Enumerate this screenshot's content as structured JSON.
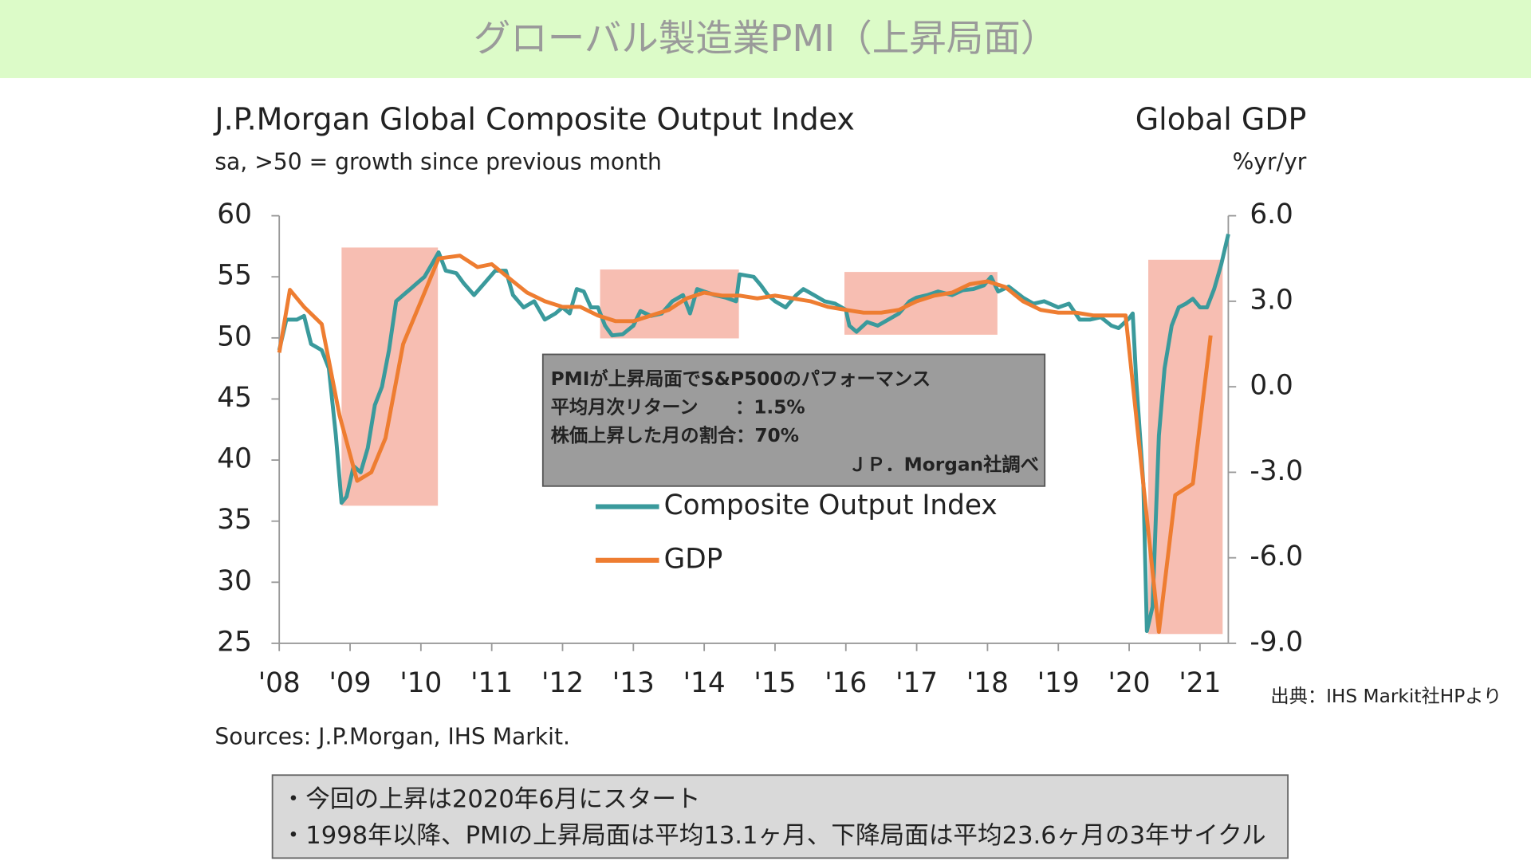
{
  "header": {
    "title": "グローバル製造業PMI（上昇局面）"
  },
  "chart_data": {
    "type": "line",
    "title": "J.P.Morgan Global Composite Output Index",
    "subtitle": "sa, >50 = growth since previous month",
    "y2_title": "Global GDP",
    "y2_subtitle": "%yr/yr",
    "source": "Sources: J.P.Morgan, IHS Markit.",
    "xlim": [
      2008,
      2021.4
    ],
    "xticks": [
      {
        "value": 2008,
        "label": "'08"
      },
      {
        "value": 2009,
        "label": "'09"
      },
      {
        "value": 2010,
        "label": "'10"
      },
      {
        "value": 2011,
        "label": "'11"
      },
      {
        "value": 2012,
        "label": "'12"
      },
      {
        "value": 2013,
        "label": "'13"
      },
      {
        "value": 2014,
        "label": "'14"
      },
      {
        "value": 2015,
        "label": "'15"
      },
      {
        "value": 2016,
        "label": "'16"
      },
      {
        "value": 2017,
        "label": "'17"
      },
      {
        "value": 2018,
        "label": "'18"
      },
      {
        "value": 2019,
        "label": "'19"
      },
      {
        "value": 2020,
        "label": "'20"
      },
      {
        "value": 2021,
        "label": "'21"
      }
    ],
    "ylim": [
      25,
      60
    ],
    "yticks": [
      25,
      30,
      35,
      40,
      45,
      50,
      55,
      60
    ],
    "y2lim": [
      -9,
      6
    ],
    "y2ticks": [
      {
        "value": -9,
        "label": "-9.0"
      },
      {
        "value": -6,
        "label": "-6.0"
      },
      {
        "value": -3,
        "label": "-3.0"
      },
      {
        "value": 0,
        "label": "0.0"
      },
      {
        "value": 3,
        "label": "3.0"
      },
      {
        "value": 6,
        "label": "6.0"
      }
    ],
    "grid": false,
    "series": [
      {
        "name": "Composite Output Index",
        "color": "#3a9a9c",
        "x": [
          2008.0,
          2008.1,
          2008.25,
          2008.35,
          2008.45,
          2008.6,
          2008.7,
          2008.8,
          2008.88,
          2008.95,
          2009.05,
          2009.15,
          2009.25,
          2009.35,
          2009.45,
          2009.55,
          2009.65,
          2009.75,
          2009.85,
          2009.95,
          2010.05,
          2010.15,
          2010.25,
          2010.35,
          2010.5,
          2010.6,
          2010.75,
          2010.9,
          2011.05,
          2011.2,
          2011.3,
          2011.45,
          2011.6,
          2011.75,
          2011.9,
          2012.0,
          2012.1,
          2012.2,
          2012.3,
          2012.4,
          2012.5,
          2012.6,
          2012.7,
          2012.85,
          2013.0,
          2013.1,
          2013.25,
          2013.4,
          2013.55,
          2013.7,
          2013.8,
          2013.9,
          2014.0,
          2014.15,
          2014.3,
          2014.45,
          2014.5,
          2014.7,
          2014.8,
          2014.9,
          2015.0,
          2015.15,
          2015.3,
          2015.4,
          2015.55,
          2015.7,
          2015.85,
          2016.0,
          2016.05,
          2016.15,
          2016.3,
          2016.45,
          2016.6,
          2016.75,
          2016.9,
          2017.0,
          2017.15,
          2017.3,
          2017.5,
          2017.65,
          2017.8,
          2017.95,
          2018.05,
          2018.15,
          2018.3,
          2018.5,
          2018.65,
          2018.8,
          2019.0,
          2019.15,
          2019.3,
          2019.45,
          2019.6,
          2019.75,
          2019.85,
          2020.0,
          2020.05,
          2020.1,
          2020.2,
          2020.25,
          2020.33,
          2020.42,
          2020.5,
          2020.6,
          2020.7,
          2020.8,
          2020.9,
          2021.0,
          2021.1,
          2021.2,
          2021.3,
          2021.4
        ],
        "values": [
          49,
          51.5,
          51.5,
          51.8,
          49.5,
          49,
          47.5,
          42,
          36.5,
          37,
          39.5,
          39,
          41,
          44.5,
          46,
          49,
          53,
          53.5,
          54,
          54.5,
          55,
          56,
          57,
          55.5,
          55.3,
          54.5,
          53.5,
          54.5,
          55.5,
          55.5,
          53.5,
          52.5,
          53,
          51.5,
          52,
          52.5,
          52,
          54,
          53.8,
          52.5,
          52.5,
          51,
          50.2,
          50.3,
          51,
          52.2,
          51.8,
          52,
          53,
          53.5,
          52,
          54,
          53.8,
          53.5,
          53.3,
          53,
          55.2,
          55,
          54.3,
          53.5,
          53,
          52.5,
          53.5,
          54,
          53.5,
          53,
          52.8,
          52.3,
          51,
          50.5,
          51.3,
          51,
          51.5,
          52,
          53,
          53.3,
          53.5,
          53.8,
          53.5,
          53.9,
          54,
          54.3,
          55,
          53.8,
          54.2,
          53.3,
          52.8,
          53,
          52.5,
          52.8,
          51.5,
          51.5,
          51.7,
          51,
          50.8,
          51.6,
          52,
          46.5,
          38,
          26,
          28,
          42,
          47.5,
          51,
          52.5,
          52.8,
          53.2,
          52.5,
          52.5,
          54,
          56,
          58.5
        ]
      },
      {
        "name": "GDP",
        "color": "#ee7d31",
        "axis": "y2",
        "x": [
          2008.0,
          2008.15,
          2008.35,
          2008.6,
          2008.85,
          2009.1,
          2009.3,
          2009.5,
          2009.75,
          2010.0,
          2010.25,
          2010.55,
          2010.8,
          2011.0,
          2011.3,
          2011.5,
          2011.75,
          2012.0,
          2012.25,
          2012.5,
          2012.75,
          2013.0,
          2013.25,
          2013.5,
          2013.75,
          2014.0,
          2014.25,
          2014.5,
          2014.75,
          2015.0,
          2015.25,
          2015.5,
          2015.75,
          2016.0,
          2016.25,
          2016.5,
          2016.75,
          2017.0,
          2017.25,
          2017.5,
          2017.75,
          2018.0,
          2018.25,
          2018.5,
          2018.75,
          2019.0,
          2019.25,
          2019.5,
          2019.95,
          2020.42,
          2020.65,
          2020.9,
          2021.15
        ],
        "values": [
          1.2,
          3.4,
          2.8,
          2.2,
          -1.0,
          -3.3,
          -3.0,
          -1.8,
          1.5,
          3.0,
          4.5,
          4.6,
          4.2,
          4.3,
          3.7,
          3.3,
          3.0,
          2.8,
          2.8,
          2.5,
          2.3,
          2.3,
          2.5,
          2.7,
          3.1,
          3.3,
          3.2,
          3.2,
          3.1,
          3.2,
          3.1,
          3.0,
          2.8,
          2.7,
          2.6,
          2.6,
          2.7,
          3.0,
          3.2,
          3.3,
          3.6,
          3.7,
          3.5,
          3.0,
          2.7,
          2.6,
          2.6,
          2.5,
          2.5,
          -8.6,
          -3.8,
          -3.4,
          1.8
        ]
      }
    ],
    "highlight_periods": [
      {
        "from": 2008.88,
        "to": 2010.24
      },
      {
        "from": 2012.53,
        "to": 2014.49
      },
      {
        "from": 2015.98,
        "to": 2018.14
      },
      {
        "from": 2020.27,
        "to": 2021.32
      }
    ],
    "annotation": [
      "PMIが上昇局面でS&P500のパフォーマンス",
      "平均月次リターン　　：1.5%",
      "株価上昇した月の割合：70%",
      "ＪＰ．Morgan社調べ"
    ]
  },
  "credit": "出典：IHS Markit社HPより",
  "notes": [
    "・今回の上昇は2020年6月にスタート",
    "・1998年以降、PMIの上昇局面は平均13.1ヶ月、下降局面は平均23.6ヶ月の3年サイクル"
  ]
}
